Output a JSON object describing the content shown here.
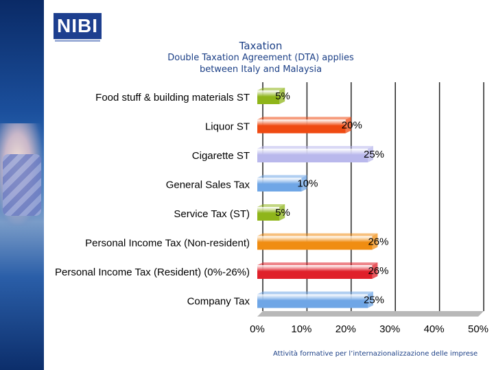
{
  "logo": {
    "text": "NIBI"
  },
  "header": {
    "title": "Taxation",
    "subtitle_line1": "Double Taxation Agreement (DTA) applies",
    "subtitle_line2": "between Italy and Malaysia"
  },
  "footer": {
    "text": "Attività formative per l’internazionalizzazione delle imprese"
  },
  "chart_data": {
    "type": "bar",
    "orientation": "horizontal",
    "title": "",
    "xlabel": "",
    "ylabel": "",
    "xlim": [
      0,
      50
    ],
    "x_ticks": [
      0,
      10,
      20,
      30,
      40,
      50
    ],
    "x_tick_labels": [
      "0%",
      "10%",
      "20%",
      "30%",
      "40%",
      "50%"
    ],
    "grid": true,
    "categories": [
      "Food stuff & building materials ST",
      "Liquor ST",
      "Cigarette ST",
      "General Sales Tax",
      "Service Tax (ST)",
      "Personal Income Tax (Non-resident)",
      "Personal Income Tax (Resident) (0%-26%)",
      "Company Tax"
    ],
    "values": [
      5,
      20,
      25,
      10,
      5,
      26,
      26,
      25
    ],
    "value_labels": [
      "5%",
      "20%",
      "25%",
      "10%",
      "5%",
      "26%",
      "26%",
      "25%"
    ],
    "colors": [
      "#8fb51a",
      "#ef4a12",
      "#b9b8ec",
      "#6fa6e6",
      "#8fb51a",
      "#f08d12",
      "#e0202a",
      "#6fa6e6"
    ]
  }
}
